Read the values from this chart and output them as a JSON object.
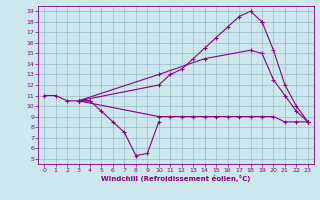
{
  "xlabel": "Windchill (Refroidissement éolien,°C)",
  "bg_color": "#cce8ee",
  "line_color": "#880088",
  "grid_color": "#99bbcc",
  "xlim": [
    -0.5,
    23.5
  ],
  "ylim": [
    4.5,
    19.5
  ],
  "xticks": [
    0,
    1,
    2,
    3,
    4,
    5,
    6,
    7,
    8,
    9,
    10,
    11,
    12,
    13,
    14,
    15,
    16,
    17,
    18,
    19,
    20,
    21,
    22,
    23
  ],
  "yticks": [
    5,
    6,
    7,
    8,
    9,
    10,
    11,
    12,
    13,
    14,
    15,
    16,
    17,
    18,
    19
  ],
  "lines": [
    {
      "x": [
        0,
        1,
        2,
        3,
        4
      ],
      "y": [
        11,
        11,
        10.5,
        10.5,
        10.5
      ]
    },
    {
      "x": [
        3,
        4,
        5,
        6,
        7,
        8,
        9,
        10
      ],
      "y": [
        10.5,
        10.5,
        9.5,
        8.5,
        7.5,
        5.3,
        5.5,
        8.5
      ]
    },
    {
      "x": [
        3,
        10,
        11,
        12,
        13,
        14,
        15,
        16,
        17,
        18,
        19
      ],
      "y": [
        10.5,
        12,
        13,
        13.5,
        14.5,
        15.5,
        16.5,
        17.5,
        18.5,
        19,
        18
      ]
    },
    {
      "x": [
        19,
        20,
        21,
        22,
        23
      ],
      "y": [
        18,
        15.3,
        12,
        10,
        8.5
      ]
    },
    {
      "x": [
        3,
        10,
        14,
        18,
        19,
        20,
        21,
        22,
        23
      ],
      "y": [
        10.5,
        13,
        14.5,
        15.3,
        15,
        12.5,
        11,
        9.5,
        8.5
      ]
    },
    {
      "x": [
        3,
        10,
        11,
        12,
        13,
        14,
        15,
        16,
        17,
        18,
        19,
        20,
        21,
        22,
        23
      ],
      "y": [
        10.5,
        9,
        9,
        9,
        9,
        9,
        9,
        9,
        9,
        9,
        9,
        9,
        8.5,
        8.5,
        8.5
      ]
    }
  ]
}
